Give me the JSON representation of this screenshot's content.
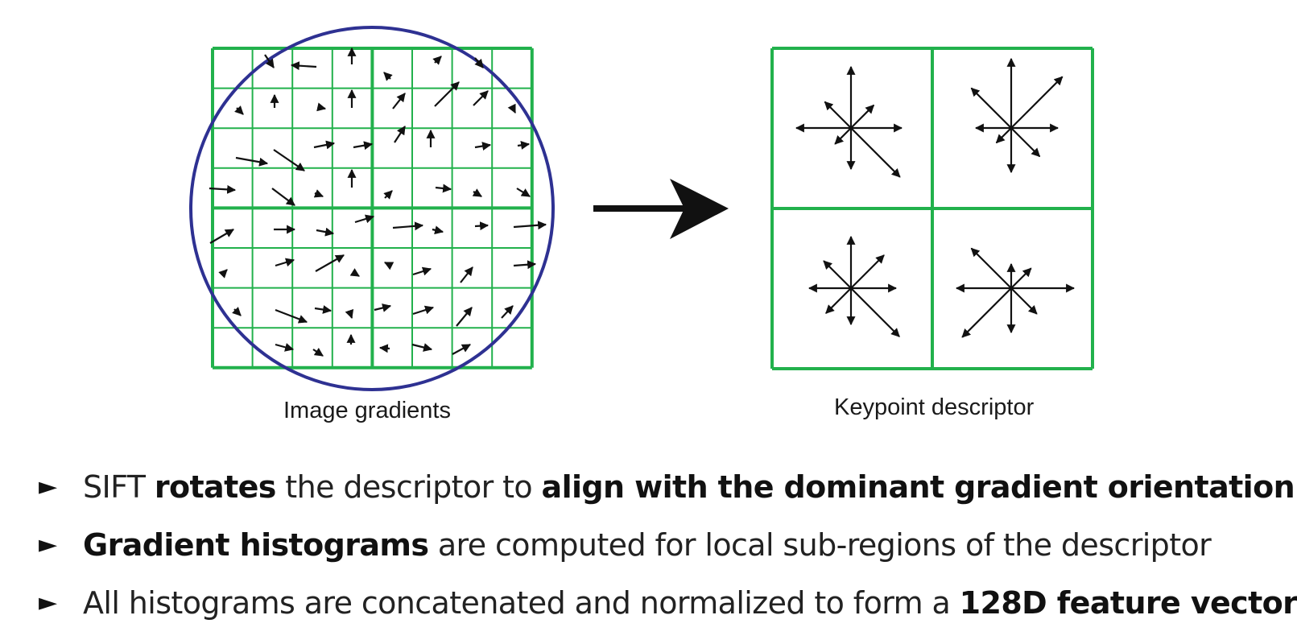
{
  "figure": {
    "left_caption": "Image gradients",
    "right_caption": "Keypoint descriptor",
    "colors": {
      "grid": "#22b14c",
      "circle": "#2e3192",
      "arrow": "#111111",
      "big_arrow": "#111111"
    },
    "arrow_glyph_icon": "arrow-icon"
  },
  "bullets": [
    {
      "marker": "►",
      "parts": [
        {
          "text": "SIFT ",
          "bold": false
        },
        {
          "text": "rotates",
          "bold": true
        },
        {
          "text": " the descriptor to ",
          "bold": false
        },
        {
          "text": "align with the dominant gradient orientation",
          "bold": true
        }
      ]
    },
    {
      "marker": "►",
      "parts": [
        {
          "text": "Gradient histograms",
          "bold": true
        },
        {
          "text": " are computed for local sub-regions of the descriptor",
          "bold": false
        }
      ]
    },
    {
      "marker": "►",
      "parts": [
        {
          "text": "All histograms are concatenated and normalized to form a ",
          "bold": false
        },
        {
          "text": "128D feature vector",
          "bold": true
        }
      ]
    }
  ]
}
